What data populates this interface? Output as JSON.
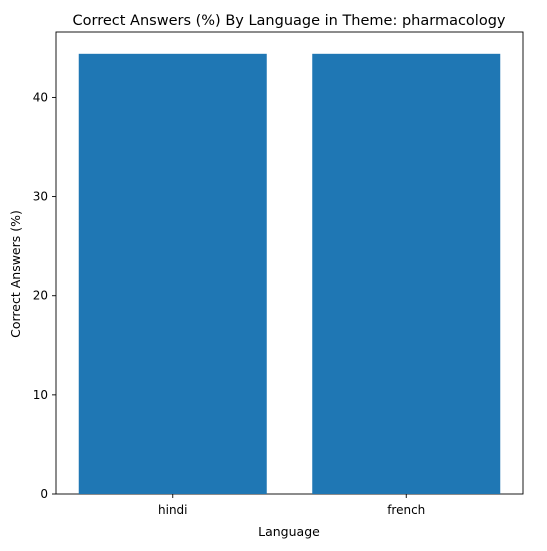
{
  "chart_data": {
    "type": "bar",
    "title": "Correct Answers (%) By Language in Theme: pharmacology",
    "xlabel": "Language",
    "ylabel": "Correct Answers (%)",
    "categories": [
      "hindi",
      "french"
    ],
    "values": [
      44.4,
      44.4
    ],
    "ylim": [
      0,
      46.6
    ],
    "yticks": [
      0,
      10,
      20,
      30,
      40
    ],
    "grid": false,
    "bar_color": "#1f77b4"
  }
}
